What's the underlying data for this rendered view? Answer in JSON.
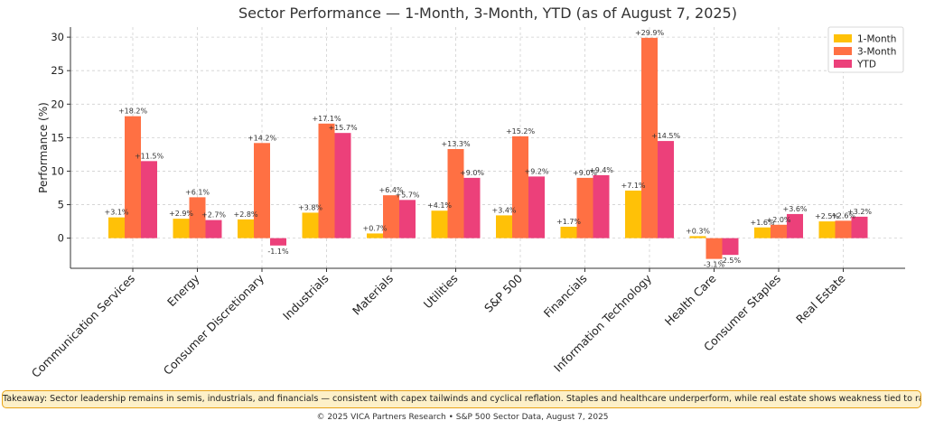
{
  "chart_data": {
    "type": "bar",
    "title": "Sector Performance — 1-Month, 3-Month, YTD (as of August 7, 2025)",
    "xlabel": "",
    "ylabel": "Performance (%)",
    "ylim": [
      -4.5,
      31.5
    ],
    "yticks": [
      0,
      5,
      10,
      15,
      20,
      25,
      30
    ],
    "grid": true,
    "legend_position": "top-right",
    "categories": [
      "Communication Services",
      "Energy",
      "Consumer Discretionary",
      "Industrials",
      "Materials",
      "Utilities",
      "S&P 500",
      "Financials",
      "Information Technology",
      "Health Care",
      "Consumer Staples",
      "Real Estate"
    ],
    "series": [
      {
        "name": "1-Month",
        "color": "#ffc107",
        "values": [
          3.1,
          2.9,
          2.8,
          3.8,
          0.7,
          4.1,
          3.4,
          1.7,
          7.1,
          0.3,
          1.6,
          2.5
        ],
        "labels": [
          "+3.1%",
          "+2.9%",
          "+2.8%",
          "+3.8%",
          "+0.7%",
          "+4.1%",
          "+3.4%",
          "+1.7%",
          "+7.1%",
          "+0.3%",
          "+1.6%",
          "+2.5%"
        ]
      },
      {
        "name": "3-Month",
        "color": "#ff7043",
        "values": [
          18.2,
          6.1,
          14.2,
          17.1,
          6.4,
          13.3,
          15.2,
          9.0,
          29.9,
          -3.1,
          2.0,
          2.6
        ],
        "labels": [
          "+18.2%",
          "+6.1%",
          "+14.2%",
          "+17.1%",
          "+6.4%",
          "+13.3%",
          "+15.2%",
          "+9.0%",
          "+29.9%",
          "-3.1%",
          "+2.0%",
          "+2.6%"
        ]
      },
      {
        "name": "YTD",
        "color": "#ec407a",
        "values": [
          11.5,
          2.7,
          -1.1,
          15.7,
          5.7,
          9.0,
          9.2,
          9.4,
          14.5,
          -2.5,
          3.6,
          3.2
        ],
        "labels": [
          "+11.5%",
          "+2.7%",
          "-1.1%",
          "+15.7%",
          "+5.7%",
          "+9.0%",
          "+9.2%",
          "+9.4%",
          "+14.5%",
          "-2.5%",
          "+3.6%",
          "+3.2%"
        ]
      }
    ]
  },
  "takeaway": "Takeaway: Sector leadership remains in semis, industrials, and financials — consistent with capex tailwinds and cyclical reflation. Staples and healthcare underperform, while real estate shows weakness tied to rate sensitivity.",
  "footer": "© 2025 VICA Partners Research • S&P 500 Sector Data, August 7, 2025"
}
